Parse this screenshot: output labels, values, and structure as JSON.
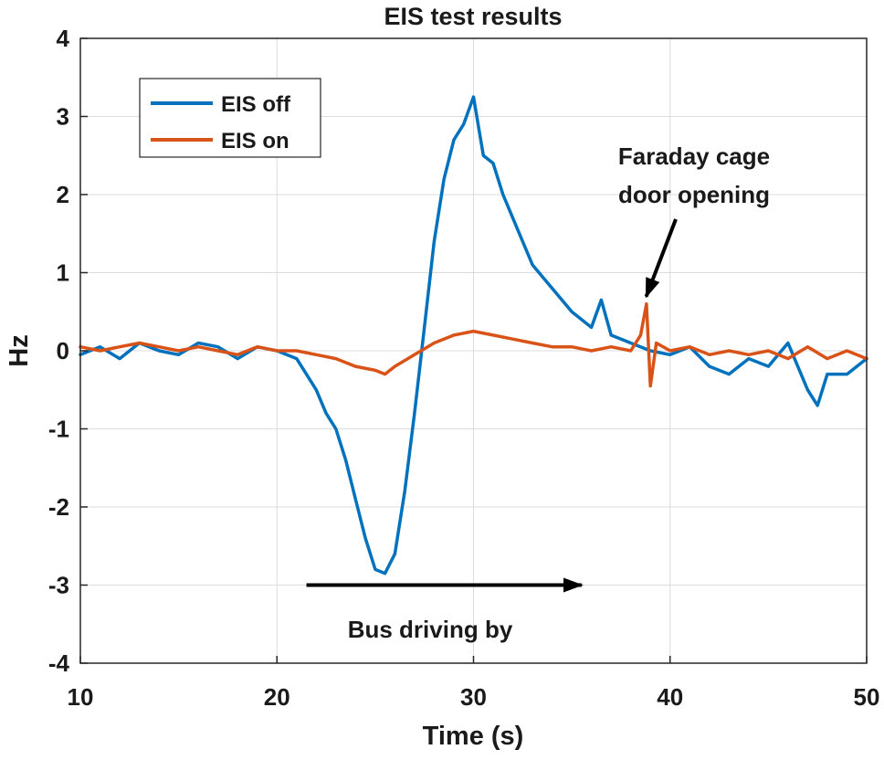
{
  "chart_data": {
    "type": "line",
    "title": "EIS test results",
    "xlabel": "Time (s)",
    "ylabel": "Hz",
    "xlim": [
      10,
      50
    ],
    "ylim": [
      -4,
      4
    ],
    "xticks": [
      10,
      20,
      30,
      40,
      50
    ],
    "yticks": [
      -4,
      -3,
      -2,
      -1,
      0,
      1,
      2,
      3,
      4
    ],
    "grid": true,
    "legend_position": "top-left",
    "series": [
      {
        "name": "EIS off",
        "color": "#0072BD",
        "x": [
          10,
          11,
          12,
          13,
          14,
          15,
          16,
          17,
          18,
          19,
          20,
          21,
          22,
          22.5,
          23,
          23.5,
          24,
          24.5,
          25,
          25.5,
          26,
          26.5,
          27,
          27.5,
          28,
          28.5,
          29,
          29.5,
          30,
          30.5,
          31,
          31.5,
          32,
          33,
          34,
          35,
          36,
          36.5,
          37,
          38,
          39,
          40,
          41,
          42,
          43,
          44,
          45,
          46,
          47,
          47.5,
          48,
          49,
          50
        ],
        "values": [
          -0.05,
          0.05,
          -0.1,
          0.1,
          0.0,
          -0.05,
          0.1,
          0.05,
          -0.1,
          0.05,
          0.0,
          -0.1,
          -0.5,
          -0.8,
          -1.0,
          -1.4,
          -1.9,
          -2.4,
          -2.8,
          -2.85,
          -2.6,
          -1.8,
          -0.8,
          0.3,
          1.4,
          2.2,
          2.7,
          2.9,
          3.25,
          2.5,
          2.4,
          2.0,
          1.7,
          1.1,
          0.8,
          0.5,
          0.3,
          0.65,
          0.2,
          0.1,
          0.0,
          -0.05,
          0.05,
          -0.2,
          -0.3,
          -0.1,
          -0.2,
          0.1,
          -0.5,
          -0.7,
          -0.3,
          -0.3,
          -0.1
        ]
      },
      {
        "name": "EIS on",
        "color": "#D95319",
        "x": [
          10,
          11,
          12,
          13,
          14,
          15,
          16,
          17,
          18,
          19,
          20,
          21,
          22,
          23,
          24,
          25,
          25.5,
          26,
          27,
          28,
          29,
          30,
          31,
          32,
          33,
          34,
          35,
          36,
          37,
          38,
          38.5,
          38.8,
          39,
          39.3,
          40,
          41,
          42,
          43,
          44,
          45,
          46,
          47,
          48,
          49,
          50
        ],
        "values": [
          0.05,
          0.0,
          0.05,
          0.1,
          0.05,
          0.0,
          0.05,
          0.0,
          -0.05,
          0.05,
          0.0,
          0.0,
          -0.05,
          -0.1,
          -0.2,
          -0.25,
          -0.3,
          -0.2,
          -0.05,
          0.1,
          0.2,
          0.25,
          0.2,
          0.15,
          0.1,
          0.05,
          0.05,
          0.0,
          0.05,
          0.0,
          0.2,
          0.6,
          -0.45,
          0.1,
          0.0,
          0.05,
          -0.05,
          0.0,
          -0.05,
          0.0,
          -0.1,
          0.05,
          -0.1,
          0.0,
          -0.1
        ]
      }
    ],
    "annotations": [
      {
        "text_lines": [
          "Faraday cage",
          "door opening"
        ],
        "points_to": {
          "x": 38.6,
          "y": 0.6
        }
      },
      {
        "text": "Bus driving by",
        "arrow_from": {
          "x": 21.5,
          "y": -3.0
        },
        "arrow_to": {
          "x": 35.5,
          "y": -3.0
        }
      }
    ]
  }
}
